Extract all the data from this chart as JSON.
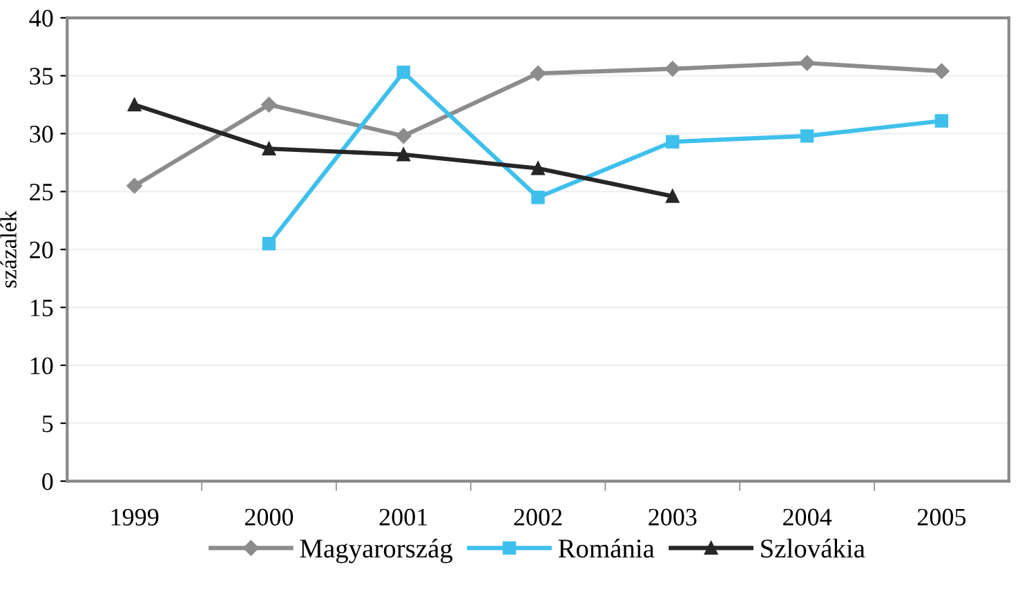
{
  "chart_data": {
    "type": "line",
    "ylabel": "százalék",
    "categories": [
      "1999",
      "2000",
      "2001",
      "2002",
      "2003",
      "2004",
      "2005"
    ],
    "series": [
      {
        "name": "Magyarország",
        "color": "#8c8c8c",
        "marker": "diamond",
        "values": [
          25.5,
          32.5,
          29.8,
          35.2,
          35.6,
          36.1,
          35.4
        ]
      },
      {
        "name": "Románia",
        "color": "#3fc0ec",
        "marker": "square",
        "values": [
          null,
          20.5,
          35.3,
          24.5,
          29.3,
          29.8,
          31.1
        ]
      },
      {
        "name": "Szlovákia",
        "color": "#262626",
        "marker": "triangle",
        "values": [
          32.5,
          28.7,
          28.2,
          27.0,
          24.6,
          null,
          null
        ]
      }
    ],
    "ylim": [
      0,
      40
    ],
    "yticks": [
      0,
      5,
      10,
      15,
      20,
      25,
      30,
      35,
      40
    ],
    "grid": "y",
    "legend": "bottom"
  }
}
